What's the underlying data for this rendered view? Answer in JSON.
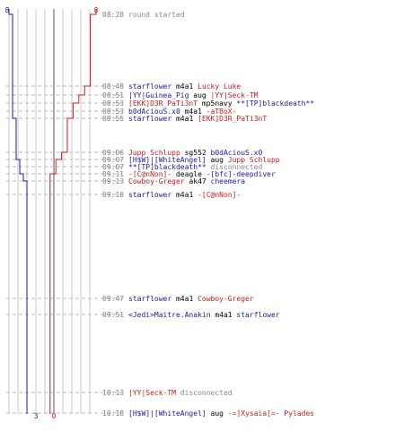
{
  "colors": {
    "blue": "#1a1aa6",
    "red": "#cc1a1a",
    "grey": "#888888",
    "gridline": "#c8c8c8",
    "centerline": "#555555"
  },
  "counts": {
    "top_blue": "8",
    "top_red": "8",
    "bottom_blue": "3",
    "bottom_red": "0"
  },
  "events": [
    {
      "time": "08:28",
      "parts": [
        {
          "t": "round started",
          "c": "grey"
        }
      ]
    },
    {
      "time": "08:48",
      "parts": [
        {
          "t": "starflower",
          "c": "blue"
        },
        {
          "t": " m4a1 ",
          "c": "dark"
        },
        {
          "t": "Lucky Luke",
          "c": "red"
        }
      ]
    },
    {
      "time": "08:51",
      "parts": [
        {
          "t": "|YY|Guinea_Pig",
          "c": "blue"
        },
        {
          "t": " aug ",
          "c": "dark"
        },
        {
          "t": "|YY|Seck-TM",
          "c": "red"
        }
      ]
    },
    {
      "time": "08:53",
      "parts": [
        {
          "t": "[EKK]D3R_PaTi3nT",
          "c": "red"
        },
        {
          "t": " mp5navy ",
          "c": "dark"
        },
        {
          "t": "**[TP]blackdeath**",
          "c": "blue"
        }
      ]
    },
    {
      "time": "08:53",
      "parts": [
        {
          "t": "b0dAciouS.x0",
          "c": "blue"
        },
        {
          "t": " m4a1 ",
          "c": "dark"
        },
        {
          "t": "-aTBoX-",
          "c": "red"
        }
      ]
    },
    {
      "time": "08:55",
      "parts": [
        {
          "t": "starflower",
          "c": "blue"
        },
        {
          "t": " m4a1 ",
          "c": "dark"
        },
        {
          "t": "[EKK]D3R_PaTi3nT",
          "c": "red"
        }
      ]
    },
    {
      "time": "09:06",
      "parts": [
        {
          "t": "Jupp Schlupp",
          "c": "red"
        },
        {
          "t": " sg552 ",
          "c": "dark"
        },
        {
          "t": "b0dAciouS.x0",
          "c": "blue"
        }
      ]
    },
    {
      "time": "09:07",
      "parts": [
        {
          "t": "[H$W]|[WhiteAngel]",
          "c": "blue"
        },
        {
          "t": " aug ",
          "c": "dark"
        },
        {
          "t": "Jupp Schlupp",
          "c": "red"
        }
      ]
    },
    {
      "time": "09:07",
      "parts": [
        {
          "t": "**[TP]blackdeath**",
          "c": "blue"
        },
        {
          "t": " disconnected",
          "c": "grey"
        }
      ]
    },
    {
      "time": "09:11",
      "parts": [
        {
          "t": "-[C@nNon]-",
          "c": "red"
        },
        {
          "t": " deagle ",
          "c": "dark"
        },
        {
          "t": "-[bfc]-deepdiver",
          "c": "blue"
        }
      ]
    },
    {
      "time": "09:13",
      "parts": [
        {
          "t": "Cowboy-Greger",
          "c": "red"
        },
        {
          "t": " ak47 ",
          "c": "dark"
        },
        {
          "t": "cheemera",
          "c": "blue"
        }
      ]
    },
    {
      "time": "09:18",
      "parts": [
        {
          "t": "starflower",
          "c": "blue"
        },
        {
          "t": " m4a1 ",
          "c": "dark"
        },
        {
          "t": "-[C@nNon]-",
          "c": "red"
        }
      ]
    },
    {
      "time": "09:47",
      "parts": [
        {
          "t": "starflower",
          "c": "blue"
        },
        {
          "t": " m4a1 ",
          "c": "dark"
        },
        {
          "t": "Cowboy-Greger",
          "c": "red"
        }
      ]
    },
    {
      "time": "09:51",
      "parts": [
        {
          "t": "<Jedi>Maitre.Anakin",
          "c": "blue"
        },
        {
          "t": " m4a1 ",
          "c": "dark"
        },
        {
          "t": "starflower",
          "c": "blue"
        }
      ]
    },
    {
      "time": "10:13",
      "parts": [
        {
          "t": "|YY|Seck-TM",
          "c": "red"
        },
        {
          "t": " disconnected",
          "c": "grey"
        }
      ]
    },
    {
      "time": "10:18",
      "parts": [
        {
          "t": "[H$W]|[WhiteAngel]",
          "c": "blue"
        },
        {
          "t": " aug ",
          "c": "dark"
        },
        {
          "t": "-=]Xysaia[=- Pylades",
          "c": "red"
        }
      ]
    }
  ],
  "chart_data": {
    "type": "line",
    "x_unit": "minutes since 08:28",
    "series": [
      {
        "color": "blue",
        "steps": [
          [
            0,
            8
          ],
          [
            27,
            7
          ],
          [
            39,
            6
          ],
          [
            43,
            5
          ],
          [
            45,
            4
          ],
          [
            79,
            3
          ]
        ]
      },
      {
        "color": "red",
        "steps": [
          [
            0,
            8
          ],
          [
            20,
            7
          ],
          [
            23,
            6
          ],
          [
            25,
            5
          ],
          [
            27,
            4
          ],
          [
            38,
            3
          ],
          [
            39,
            2
          ],
          [
            43,
            1
          ],
          [
            50,
            0
          ]
        ]
      }
    ]
  }
}
